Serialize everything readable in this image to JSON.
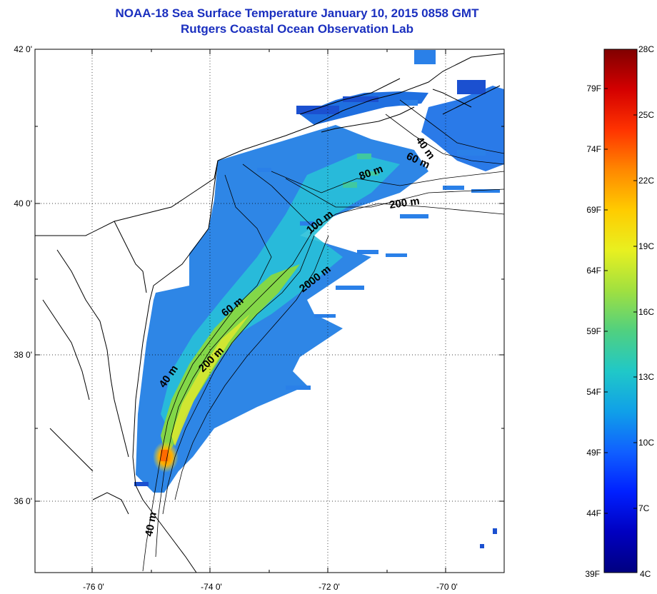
{
  "title": {
    "line1": "NOAA-18 Sea Surface Temperature January 10, 2015 0858 GMT",
    "line2": "Rutgers Coastal Ocean Observation Lab"
  },
  "map": {
    "lat_labels": [
      "42 0'",
      "40 0'",
      "38 0'",
      "36 0'"
    ],
    "lon_labels": [
      "-76 0'",
      "-74 0'",
      "-72 0'",
      "-70 0'"
    ],
    "depth_labels": [
      "40 m",
      "60 m",
      "80 m",
      "200 m",
      "100 m",
      "2000 m",
      "60 m",
      "200 m",
      "40 m",
      "40 m"
    ],
    "colors": {
      "land_outline": "#000000",
      "frame": "#000000",
      "grid": "#000000"
    }
  },
  "colorbar": {
    "fahrenheit_labels": [
      "79F",
      "74F",
      "69F",
      "64F",
      "59F",
      "54F",
      "49F",
      "44F",
      "39F"
    ],
    "celsius_labels": [
      "28C",
      "25C",
      "22C",
      "19C",
      "16C",
      "13C",
      "10C",
      "7C",
      "4C"
    ],
    "gradient": [
      "#800000",
      "#d40000",
      "#ff3300",
      "#ff8800",
      "#ffcc00",
      "#e8f020",
      "#a0e040",
      "#50d080",
      "#20c8c8",
      "#10a0e8",
      "#1060ff",
      "#0020ff",
      "#0000c0",
      "#000080"
    ]
  }
}
